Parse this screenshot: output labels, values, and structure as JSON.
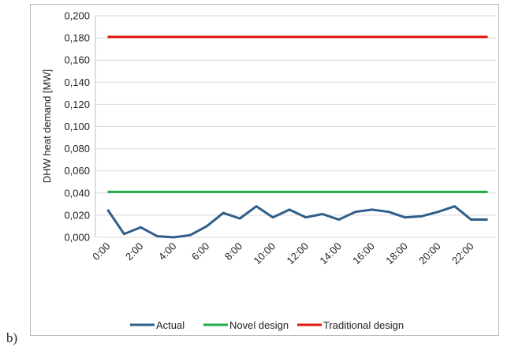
{
  "chart_data": {
    "type": "line",
    "y_label": "DHW heat demand [MW]",
    "annotation": "b)",
    "categories": [
      "0:00",
      null,
      "2:00",
      null,
      "4:00",
      null,
      "6:00",
      null,
      "8:00",
      null,
      "10:00",
      null,
      "12:00",
      null,
      "14:00",
      null,
      "16:00",
      null,
      "18:00",
      null,
      "20:00",
      null,
      "22:00",
      null
    ],
    "series": [
      {
        "name": "Actual",
        "color": "#2e5f8a",
        "values": [
          0.025,
          0.003,
          0.009,
          0.001,
          0.0,
          0.002,
          0.01,
          0.022,
          0.017,
          0.028,
          0.018,
          0.025,
          0.018,
          0.021,
          0.016,
          0.023,
          0.025,
          0.023,
          0.018,
          0.019,
          0.023,
          0.028,
          0.016,
          0.016
        ]
      },
      {
        "name": "Novel design",
        "color": "#1fae4b",
        "values": [
          0.041,
          0.041,
          0.041,
          0.041,
          0.041,
          0.041,
          0.041,
          0.041,
          0.041,
          0.041,
          0.041,
          0.041,
          0.041,
          0.041,
          0.041,
          0.041,
          0.041,
          0.041,
          0.041,
          0.041,
          0.041,
          0.041,
          0.041,
          0.041
        ]
      },
      {
        "name": "Traditional design",
        "color": "#e3170a",
        "values": [
          0.181,
          0.181,
          0.181,
          0.181,
          0.181,
          0.181,
          0.181,
          0.181,
          0.181,
          0.181,
          0.181,
          0.181,
          0.181,
          0.181,
          0.181,
          0.181,
          0.181,
          0.181,
          0.181,
          0.181,
          0.181,
          0.181,
          0.181,
          0.181
        ]
      }
    ],
    "ylim": [
      0,
      0.2
    ],
    "yticks": [
      {
        "value": 0,
        "label": "0,000"
      },
      {
        "value": 0.02,
        "label": "0,020"
      },
      {
        "value": 0.04,
        "label": "0,040"
      },
      {
        "value": 0.06,
        "label": "0,060"
      },
      {
        "value": 0.08,
        "label": "0,080"
      },
      {
        "value": 0.1,
        "label": "0,100"
      },
      {
        "value": 0.12,
        "label": "0,120"
      },
      {
        "value": 0.14,
        "label": "0,140"
      },
      {
        "value": 0.16,
        "label": "0,160"
      },
      {
        "value": 0.18,
        "label": "0,180"
      },
      {
        "value": 0.2,
        "label": "0,200"
      }
    ],
    "grid": true,
    "legend": "bottom"
  }
}
